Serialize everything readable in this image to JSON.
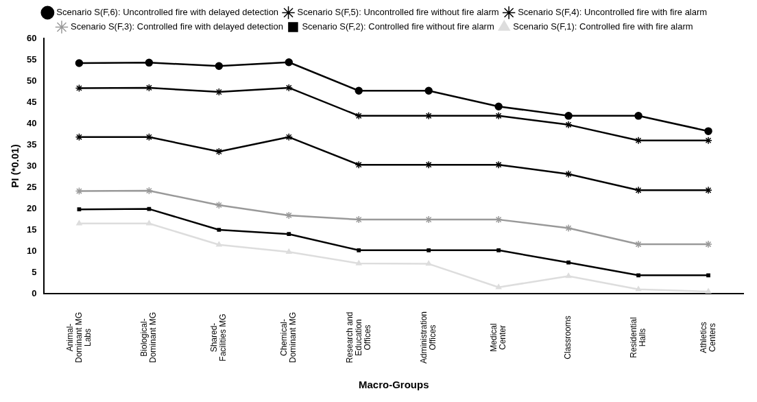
{
  "chart_data": {
    "type": "line",
    "xlabel": "Macro-Groups",
    "ylabel": "PI (*0.01)",
    "categories": [
      "Animal-Dominant MG Labs",
      "Biological-Dominant MG",
      "Shared-Facilities MG",
      "Chemical-Dominant MG",
      "Research and Education Offices",
      "Administration Offices",
      "Medical Center",
      "Classrooms",
      "Residential Halls",
      "Athletics Centers"
    ],
    "series": [
      {
        "name": "Scenario S(F,6): Uncontrolled fire with delayed detection",
        "color": "#000000",
        "marker": "circle",
        "values": [
          54.2,
          54.3,
          53.5,
          54.4,
          47.7,
          47.7,
          44,
          41.8,
          41.8,
          38.2
        ]
      },
      {
        "name": "Scenario S(F,5): Uncontrolled fire without fire alarm",
        "color": "#000000",
        "marker": "cross",
        "values": [
          48.3,
          48.4,
          47.4,
          48.4,
          41.8,
          41.8,
          41.8,
          39.7,
          36,
          36
        ]
      },
      {
        "name": "Scenario S(F,4): Uncontrolled fire with fire alarm",
        "color": "#000000",
        "marker": "cross",
        "values": [
          36.8,
          36.8,
          33.4,
          36.8,
          30.3,
          30.3,
          30.3,
          28.1,
          24.3,
          24.3
        ]
      },
      {
        "name": "Scenario S(F,3): Controlled fire with delayed detection",
        "color": "#999999",
        "marker": "cross",
        "values": [
          24.1,
          24.2,
          20.8,
          18.4,
          17.4,
          17.4,
          17.4,
          15.4,
          11.6,
          11.6
        ]
      },
      {
        "name": "Scenario S(F,2): Controlled fire without fire alarm",
        "color": "#000000",
        "marker": "square",
        "values": [
          19.8,
          19.9,
          15,
          14,
          10.2,
          10.2,
          10.2,
          7.3,
          4.3,
          4.3
        ]
      },
      {
        "name": "Scenario S(F,1): Controlled fire with fire alarm",
        "color": "#dddddd",
        "marker": "triangle",
        "values": [
          16.5,
          16.5,
          11.5,
          9.8,
          7.1,
          7,
          1.5,
          4.1,
          1,
          0.5
        ]
      }
    ],
    "ylim": [
      0,
      60
    ],
    "yticks": [
      0,
      5,
      10,
      15,
      20,
      25,
      30,
      35,
      40,
      45,
      50,
      55,
      60
    ],
    "grid": false,
    "legend": "top"
  }
}
